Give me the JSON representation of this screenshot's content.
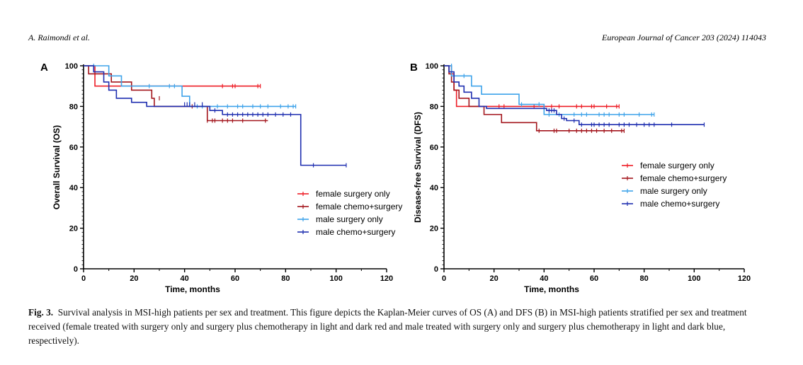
{
  "header": {
    "left": "A. Raimondi et al.",
    "right": "European Journal of Cancer 203 (2024) 114043"
  },
  "caption": {
    "label": "Fig. 3.",
    "text": "Survival analysis in MSI-high patients per sex and treatment. This figure depicts the Kaplan-Meier curves of OS (A) and DFS (B) in MSI-high patients stratified per sex and treatment received (female treated with surgery only and surgery plus chemotherapy in light and dark red and male treated with surgery only and surgery plus chemotherapy in light and dark blue, respectively)."
  },
  "colors": {
    "female_surgery_only": "#ee1c25",
    "female_chemo_surgery": "#a3151c",
    "male_surgery_only": "#3ea3ea",
    "male_chemo_surgery": "#1f2fb0"
  },
  "chart_data": [
    {
      "panel": "A",
      "type": "line",
      "xlabel": "Time, months",
      "ylabel": "Overall Survival (OS)",
      "xlim": [
        0,
        120
      ],
      "ylim": [
        0,
        100
      ],
      "xticks": [
        0,
        20,
        40,
        60,
        80,
        100,
        120
      ],
      "yticks": [
        0,
        20,
        40,
        60,
        80,
        100
      ],
      "legend_position": "bottom-right",
      "series": [
        {
          "name": "female surgery only",
          "color": "#ee1c25",
          "steps": [
            [
              0,
              100
            ],
            [
              4.5,
              90
            ],
            [
              70,
              90
            ]
          ],
          "censor": [
            [
              55,
              90
            ],
            [
              59,
              90
            ],
            [
              60,
              90
            ],
            [
              69,
              90
            ],
            [
              70,
              90
            ]
          ]
        },
        {
          "name": "female chemo+surgery",
          "color": "#a3151c",
          "steps": [
            [
              0,
              100
            ],
            [
              2,
              96
            ],
            [
              11,
              92
            ],
            [
              19,
              88
            ],
            [
              27,
              84
            ],
            [
              28,
              80
            ],
            [
              49,
              73
            ],
            [
              73,
              73
            ]
          ],
          "censor": [
            [
              30,
              84
            ],
            [
              43,
              80
            ],
            [
              49,
              73
            ],
            [
              51,
              73
            ],
            [
              52,
              73
            ],
            [
              55,
              73
            ],
            [
              57,
              73
            ],
            [
              59,
              73
            ],
            [
              63,
              73
            ],
            [
              72,
              73
            ]
          ]
        },
        {
          "name": "male surgery only",
          "color": "#3ea3ea",
          "steps": [
            [
              0,
              100
            ],
            [
              10,
              95
            ],
            [
              15,
              90
            ],
            [
              39,
              85
            ],
            [
              42,
              80
            ],
            [
              84,
              80
            ]
          ],
          "censor": [
            [
              4,
              100
            ],
            [
              26,
              90
            ],
            [
              34,
              90
            ],
            [
              36,
              90
            ],
            [
              45,
              80
            ],
            [
              47,
              80
            ],
            [
              53,
              80
            ],
            [
              57,
              80
            ],
            [
              61,
              80
            ],
            [
              63,
              80
            ],
            [
              67,
              80
            ],
            [
              70,
              80
            ],
            [
              73,
              80
            ],
            [
              78,
              80
            ],
            [
              81,
              80
            ],
            [
              83,
              80
            ],
            [
              84,
              80
            ]
          ]
        },
        {
          "name": "male chemo+surgery",
          "color": "#1f2fb0",
          "steps": [
            [
              0,
              100
            ],
            [
              4,
              97
            ],
            [
              8,
              92
            ],
            [
              10,
              88
            ],
            [
              13,
              84
            ],
            [
              19,
              82
            ],
            [
              25,
              80
            ],
            [
              50,
              78
            ],
            [
              55,
              76
            ],
            [
              86,
              76
            ],
            [
              86,
              51
            ],
            [
              104,
              51
            ]
          ],
          "censor": [
            [
              40,
              81
            ],
            [
              41,
              81
            ],
            [
              42,
              81
            ],
            [
              44,
              81
            ],
            [
              47,
              81
            ],
            [
              52,
              78
            ],
            [
              57,
              76
            ],
            [
              59,
              76
            ],
            [
              61,
              76
            ],
            [
              63,
              76
            ],
            [
              65,
              76
            ],
            [
              67,
              76
            ],
            [
              69,
              76
            ],
            [
              71,
              76
            ],
            [
              73,
              76
            ],
            [
              76,
              76
            ],
            [
              79,
              76
            ],
            [
              82,
              76
            ],
            [
              91,
              51
            ],
            [
              104,
              51
            ]
          ]
        }
      ]
    },
    {
      "panel": "B",
      "type": "line",
      "xlabel": "Time, months",
      "ylabel": "Disease-free Survival (DFS)",
      "xlim": [
        0,
        120
      ],
      "ylim": [
        0,
        100
      ],
      "xticks": [
        0,
        20,
        40,
        60,
        80,
        100,
        120
      ],
      "yticks": [
        0,
        20,
        40,
        60,
        80,
        100
      ],
      "legend_position": "center-right",
      "series": [
        {
          "name": "female surgery only",
          "color": "#ee1c25",
          "steps": [
            [
              0,
              100
            ],
            [
              3,
              96
            ],
            [
              4,
              88
            ],
            [
              5,
              80
            ],
            [
              70,
              80
            ]
          ],
          "censor": [
            [
              22,
              80
            ],
            [
              24,
              80
            ],
            [
              36,
              80
            ],
            [
              40,
              80
            ],
            [
              43,
              80
            ],
            [
              46,
              80
            ],
            [
              53,
              80
            ],
            [
              55,
              80
            ],
            [
              59,
              80
            ],
            [
              60,
              80
            ],
            [
              65,
              80
            ],
            [
              69,
              80
            ],
            [
              70,
              80
            ]
          ]
        },
        {
          "name": "female chemo+surgery",
          "color": "#a3151c",
          "steps": [
            [
              0,
              100
            ],
            [
              2,
              96
            ],
            [
              3,
              92
            ],
            [
              4,
              88
            ],
            [
              6,
              84
            ],
            [
              10,
              80
            ],
            [
              16,
              76
            ],
            [
              23,
              72
            ],
            [
              37,
              68
            ],
            [
              72,
              68
            ]
          ],
          "censor": [
            [
              38,
              68
            ],
            [
              44,
              68
            ],
            [
              45,
              68
            ],
            [
              50,
              68
            ],
            [
              53,
              68
            ],
            [
              55,
              68
            ],
            [
              57,
              68
            ],
            [
              59,
              68
            ],
            [
              61,
              68
            ],
            [
              64,
              68
            ],
            [
              67,
              68
            ],
            [
              71,
              68
            ],
            [
              72,
              68
            ]
          ]
        },
        {
          "name": "male surgery only",
          "color": "#3ea3ea",
          "steps": [
            [
              0,
              100
            ],
            [
              3,
              95
            ],
            [
              11,
              90
            ],
            [
              15,
              86
            ],
            [
              30,
              81
            ],
            [
              40,
              78
            ],
            [
              40,
              76
            ],
            [
              84,
              76
            ]
          ],
          "censor": [
            [
              3,
              100
            ],
            [
              8,
              95
            ],
            [
              31,
              81
            ],
            [
              38,
              81
            ],
            [
              42,
              76
            ],
            [
              46,
              76
            ],
            [
              52,
              76
            ],
            [
              55,
              76
            ],
            [
              57,
              76
            ],
            [
              62,
              76
            ],
            [
              64,
              76
            ],
            [
              66,
              76
            ],
            [
              70,
              76
            ],
            [
              72,
              76
            ],
            [
              78,
              76
            ],
            [
              83,
              76
            ],
            [
              84,
              76
            ]
          ]
        },
        {
          "name": "male chemo+surgery",
          "color": "#1f2fb0",
          "steps": [
            [
              0,
              100
            ],
            [
              2,
              97
            ],
            [
              4,
              92
            ],
            [
              6,
              90
            ],
            [
              8,
              87
            ],
            [
              11,
              84
            ],
            [
              14,
              80
            ],
            [
              17,
              79
            ],
            [
              40,
              79
            ],
            [
              41,
              78
            ],
            [
              45,
              76
            ],
            [
              47,
              74
            ],
            [
              49,
              73
            ],
            [
              54,
              71
            ],
            [
              104,
              71
            ]
          ],
          "censor": [
            [
              42,
              78
            ],
            [
              43,
              78
            ],
            [
              44,
              78
            ],
            [
              48,
              74
            ],
            [
              52,
              73
            ],
            [
              55,
              71
            ],
            [
              59,
              71
            ],
            [
              60,
              71
            ],
            [
              62,
              71
            ],
            [
              64,
              71
            ],
            [
              66,
              71
            ],
            [
              70,
              71
            ],
            [
              72,
              71
            ],
            [
              74,
              71
            ],
            [
              77,
              71
            ],
            [
              80,
              71
            ],
            [
              82,
              71
            ],
            [
              84,
              71
            ],
            [
              91,
              71
            ],
            [
              104,
              71
            ]
          ]
        }
      ]
    }
  ]
}
